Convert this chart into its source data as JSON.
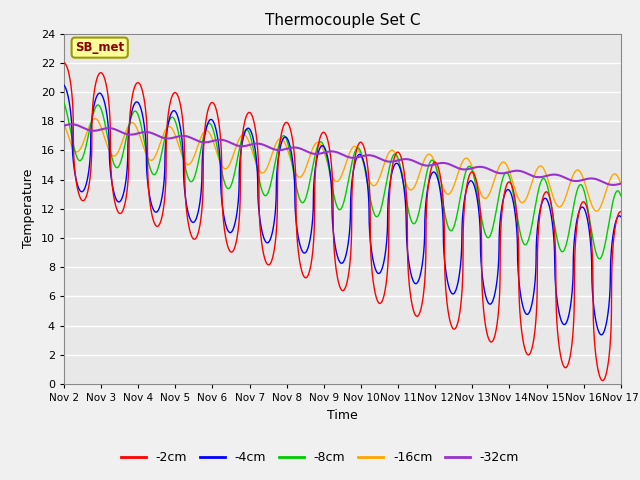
{
  "title": "Thermocouple Set C",
  "xlabel": "Time",
  "ylabel": "Temperature",
  "xlim": [
    0,
    15
  ],
  "ylim": [
    0,
    24
  ],
  "yticks": [
    0,
    2,
    4,
    6,
    8,
    10,
    12,
    14,
    16,
    18,
    20,
    22,
    24
  ],
  "xtick_labels": [
    "Nov 2",
    "Nov 3",
    "Nov 4",
    "Nov 5",
    "Nov 6",
    "Nov 7",
    "Nov 8",
    "Nov 9",
    "Nov 10",
    "Nov 11",
    "Nov 12",
    "Nov 13",
    "Nov 14",
    "Nov 15",
    "Nov 16",
    "Nov 17"
  ],
  "annotation_text": "SB_met",
  "annotation_color": "#8B0000",
  "annotation_bg": "#FFFF99",
  "plot_bg": "#E8E8E8",
  "colors": {
    "-2cm": "#FF0000",
    "-4cm": "#0000FF",
    "-8cm": "#00CC00",
    "-16cm": "#FFA500",
    "-32cm": "#9932CC"
  },
  "legend_labels": [
    "-2cm",
    "-4cm",
    "-8cm",
    "-16cm",
    "-32cm"
  ],
  "trend_2": [
    17.5,
    -0.78
  ],
  "trend_4": [
    17.0,
    -0.65
  ],
  "trend_8": [
    17.5,
    -0.45
  ],
  "trend_16": [
    17.2,
    -0.28
  ],
  "trend_32": [
    17.7,
    -0.265
  ]
}
